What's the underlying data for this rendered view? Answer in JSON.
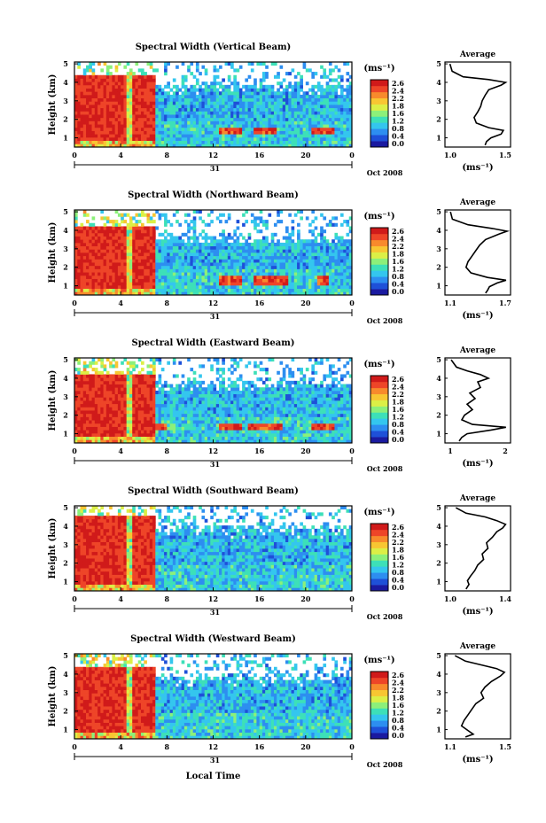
{
  "figure": {
    "xlabel": "Local Time",
    "y_label": "Height (km)",
    "date_day": "31",
    "date_label": "Oct 2008",
    "colorbar_unit": "(ms⁻¹)",
    "colorbar_ticks": [
      "2.6",
      "2.4",
      "2.2",
      "1.8",
      "1.6",
      "1.2",
      "0.8",
      "0.4",
      "0.0"
    ],
    "average_title": "Average",
    "average_xlabel": "(ms⁻¹)",
    "x_ticks": [
      "0",
      "4",
      "8",
      "12",
      "16",
      "20",
      "0"
    ],
    "y_ticks": [
      "5",
      "4",
      "3",
      "2",
      "1"
    ],
    "colormap": [
      "#1a1aa0",
      "#1e50d8",
      "#2d8ef0",
      "#34c6ee",
      "#3de0b8",
      "#8cf07a",
      "#dcef46",
      "#f8c632",
      "#f88a2c",
      "#ee4528",
      "#d01a1a"
    ]
  },
  "chart_data": [
    {
      "type": "heatmap",
      "title": "Spectral Width (Vertical Beam)",
      "xlabel": "",
      "ylabel": "Height (km)",
      "xlim": [
        0,
        24
      ],
      "ylim": [
        0.5,
        5.1
      ],
      "clim": [
        0,
        2.8
      ],
      "features": {
        "high_until_h": 7,
        "cut_h": 4.4,
        "band_y": 1.4,
        "bands": [
          [
            12.5,
            14.5
          ],
          [
            15.5,
            17.5
          ],
          [
            20.5,
            22.5
          ]
        ]
      },
      "average": {
        "title": "Average",
        "xlabel": "(ms⁻¹)",
        "xticks": [
          "1.0",
          "1.5"
        ],
        "xlim": [
          1.0,
          1.8
        ],
        "profile": [
          [
            5.0,
            1.02
          ],
          [
            4.6,
            1.05
          ],
          [
            4.3,
            1.2
          ],
          [
            4.15,
            1.55
          ],
          [
            4.0,
            1.78
          ],
          [
            3.85,
            1.72
          ],
          [
            3.6,
            1.55
          ],
          [
            3.3,
            1.5
          ],
          [
            3.0,
            1.46
          ],
          [
            2.7,
            1.44
          ],
          [
            2.4,
            1.4
          ],
          [
            2.1,
            1.35
          ],
          [
            1.8,
            1.38
          ],
          [
            1.55,
            1.55
          ],
          [
            1.4,
            1.75
          ],
          [
            1.2,
            1.72
          ],
          [
            1.0,
            1.58
          ],
          [
            0.8,
            1.52
          ],
          [
            0.6,
            1.5
          ]
        ]
      }
    },
    {
      "type": "heatmap",
      "title": "Spectral Width (Northward Beam)",
      "xlabel": "",
      "ylabel": "Height (km)",
      "xlim": [
        0,
        24
      ],
      "ylim": [
        0.5,
        5.1
      ],
      "clim": [
        0,
        2.8
      ],
      "features": {
        "high_until_h": 7,
        "cut_h": 4.2,
        "band_y": 1.3,
        "bands": [
          [
            12.5,
            14.5
          ],
          [
            15.5,
            18.5
          ],
          [
            21,
            22
          ]
        ]
      },
      "average": {
        "title": "Average",
        "xlabel": "(ms⁻¹)",
        "xticks": [
          "1.1",
          "1.7"
        ],
        "xlim": [
          1.1,
          1.7
        ],
        "profile": [
          [
            5.0,
            1.12
          ],
          [
            4.6,
            1.14
          ],
          [
            4.3,
            1.3
          ],
          [
            4.1,
            1.55
          ],
          [
            3.95,
            1.7
          ],
          [
            3.8,
            1.62
          ],
          [
            3.5,
            1.48
          ],
          [
            3.2,
            1.42
          ],
          [
            2.9,
            1.38
          ],
          [
            2.6,
            1.34
          ],
          [
            2.3,
            1.3
          ],
          [
            2.0,
            1.28
          ],
          [
            1.7,
            1.33
          ],
          [
            1.45,
            1.5
          ],
          [
            1.3,
            1.69
          ],
          [
            1.15,
            1.6
          ],
          [
            0.95,
            1.52
          ],
          [
            0.75,
            1.5
          ],
          [
            0.6,
            1.48
          ]
        ]
      }
    },
    {
      "type": "heatmap",
      "title": "Spectral Width (Eastward Beam)",
      "xlabel": "",
      "ylabel": "Height (km)",
      "xlim": [
        0,
        24
      ],
      "ylim": [
        0.5,
        5.1
      ],
      "clim": [
        0,
        2.8
      ],
      "features": {
        "high_until_h": 7,
        "cut_h": 4.3,
        "band_y": 1.35,
        "bands": [
          [
            4,
            8
          ],
          [
            12.5,
            14.5
          ],
          [
            15,
            18
          ],
          [
            20.5,
            22.5
          ]
        ]
      },
      "average": {
        "title": "Average",
        "xlabel": "(ms⁻¹)",
        "xticks": [
          "1",
          "2"
        ],
        "xlim": [
          1.0,
          2.1
        ],
        "profile": [
          [
            5.0,
            1.05
          ],
          [
            4.6,
            1.15
          ],
          [
            4.4,
            1.35
          ],
          [
            4.2,
            1.6
          ],
          [
            4.0,
            1.75
          ],
          [
            3.8,
            1.55
          ],
          [
            3.5,
            1.6
          ],
          [
            3.2,
            1.4
          ],
          [
            2.9,
            1.5
          ],
          [
            2.6,
            1.35
          ],
          [
            2.3,
            1.45
          ],
          [
            2.0,
            1.3
          ],
          [
            1.75,
            1.25
          ],
          [
            1.5,
            1.45
          ],
          [
            1.35,
            2.08
          ],
          [
            1.2,
            1.8
          ],
          [
            1.0,
            1.35
          ],
          [
            0.8,
            1.25
          ],
          [
            0.6,
            1.2
          ]
        ]
      }
    },
    {
      "type": "heatmap",
      "title": "Spectral Width (Southward Beam)",
      "xlabel": "",
      "ylabel": "Height (km)",
      "xlim": [
        0,
        24
      ],
      "ylim": [
        0.5,
        5.1
      ],
      "clim": [
        0,
        2.8
      ],
      "features": {
        "high_until_h": 7,
        "cut_h": 4.5,
        "band_y": 0,
        "bands": []
      },
      "average": {
        "title": "Average",
        "xlabel": "(ms⁻¹)",
        "xticks": [
          "1.0",
          "1.4"
        ],
        "xlim": [
          1.0,
          1.4
        ],
        "profile": [
          [
            5.0,
            1.05
          ],
          [
            4.7,
            1.12
          ],
          [
            4.5,
            1.25
          ],
          [
            4.3,
            1.33
          ],
          [
            4.1,
            1.39
          ],
          [
            3.9,
            1.37
          ],
          [
            3.7,
            1.33
          ],
          [
            3.4,
            1.3
          ],
          [
            3.1,
            1.26
          ],
          [
            2.8,
            1.27
          ],
          [
            2.5,
            1.23
          ],
          [
            2.2,
            1.24
          ],
          [
            1.9,
            1.2
          ],
          [
            1.6,
            1.18
          ],
          [
            1.3,
            1.15
          ],
          [
            1.05,
            1.13
          ],
          [
            0.85,
            1.14
          ],
          [
            0.6,
            1.12
          ]
        ]
      }
    },
    {
      "type": "heatmap",
      "title": "Spectral Width (Westward Beam)",
      "xlabel": "Local Time",
      "ylabel": "Height (km)",
      "xlim": [
        0,
        24
      ],
      "ylim": [
        0.5,
        5.1
      ],
      "clim": [
        0,
        2.8
      ],
      "features": {
        "high_until_h": 7,
        "cut_h": 4.4,
        "band_y": 0,
        "bands": []
      },
      "average": {
        "title": "Average",
        "xlabel": "(ms⁻¹)",
        "xticks": [
          "1.1",
          "1.5"
        ],
        "xlim": [
          1.05,
          1.5
        ],
        "profile": [
          [
            5.0,
            1.1
          ],
          [
            4.7,
            1.18
          ],
          [
            4.5,
            1.3
          ],
          [
            4.3,
            1.42
          ],
          [
            4.1,
            1.48
          ],
          [
            3.9,
            1.45
          ],
          [
            3.6,
            1.38
          ],
          [
            3.3,
            1.33
          ],
          [
            3.0,
            1.3
          ],
          [
            2.7,
            1.32
          ],
          [
            2.4,
            1.26
          ],
          [
            2.1,
            1.23
          ],
          [
            1.8,
            1.2
          ],
          [
            1.5,
            1.17
          ],
          [
            1.2,
            1.15
          ],
          [
            0.95,
            1.2
          ],
          [
            0.75,
            1.24
          ],
          [
            0.6,
            1.18
          ]
        ]
      }
    }
  ]
}
